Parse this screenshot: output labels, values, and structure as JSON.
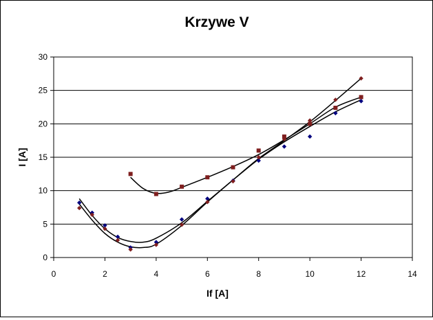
{
  "chart_data": {
    "type": "scatter",
    "title": "Krzywe V",
    "xlabel": "If [A]",
    "ylabel": "I [A]",
    "xlim": [
      0,
      14
    ],
    "ylim": [
      0,
      30
    ],
    "x_ticks": [
      "0",
      "2",
      "4",
      "6",
      "8",
      "10",
      "12",
      "14"
    ],
    "y_ticks": [
      "0",
      "5",
      "10",
      "15",
      "20",
      "25",
      "30"
    ],
    "grid": "horizontal",
    "legend": "none",
    "series": [
      {
        "marker": "diamond",
        "color": "#00007f",
        "x": [
          1,
          1.5,
          2,
          2.5,
          3,
          4,
          5,
          6,
          7,
          8,
          9,
          10,
          11,
          12
        ],
        "y": [
          8.2,
          6.7,
          4.8,
          3.1,
          1.5,
          2.3,
          5.7,
          8.8,
          11.5,
          14.5,
          16.6,
          18.1,
          21.6,
          23.4
        ]
      },
      {
        "marker": "diamond",
        "color": "#7f1f1f",
        "x": [
          1,
          1.5,
          2,
          2.5,
          3,
          4,
          5,
          6,
          7,
          8,
          9,
          10,
          11,
          12
        ],
        "y": [
          7.4,
          6.4,
          4.3,
          2.6,
          1.2,
          1.9,
          4.9,
          8.3,
          11.4,
          15.0,
          17.7,
          20.5,
          23.6,
          26.8
        ]
      },
      {
        "marker": "square",
        "color": "#7f1f1f",
        "x": [
          3,
          4,
          5,
          6,
          7,
          8,
          9,
          10,
          11,
          12
        ],
        "y": [
          12.5,
          9.5,
          10.6,
          12.0,
          13.5,
          16.0,
          18.1,
          20.0,
          22.4,
          24.0
        ]
      }
    ],
    "trendlines": [
      {
        "color": "#000000",
        "x": [
          1,
          1.5,
          2,
          2.5,
          3,
          3.5,
          4,
          5,
          6,
          7,
          8,
          9,
          10,
          11,
          12
        ],
        "y": [
          8.8,
          6.3,
          4.3,
          3.0,
          2.4,
          2.3,
          2.9,
          5.2,
          8.4,
          11.6,
          14.7,
          17.3,
          19.6,
          21.8,
          23.6
        ]
      },
      {
        "color": "#000000",
        "x": [
          1,
          1.5,
          2,
          2.5,
          3,
          3.5,
          4,
          5,
          6,
          7,
          8,
          9,
          10,
          11,
          12
        ],
        "y": [
          8.0,
          5.6,
          3.6,
          2.3,
          1.6,
          1.5,
          2.0,
          4.8,
          8.3,
          11.6,
          14.8,
          17.5,
          20.3,
          23.5,
          26.8
        ]
      },
      {
        "color": "#000000",
        "x": [
          3,
          3.5,
          4,
          4.5,
          5,
          6,
          7,
          8,
          9,
          10,
          11,
          12
        ],
        "y": [
          12.0,
          10.3,
          9.6,
          9.8,
          10.5,
          12.0,
          13.6,
          15.4,
          17.6,
          20.0,
          22.5,
          24.0
        ]
      }
    ]
  }
}
